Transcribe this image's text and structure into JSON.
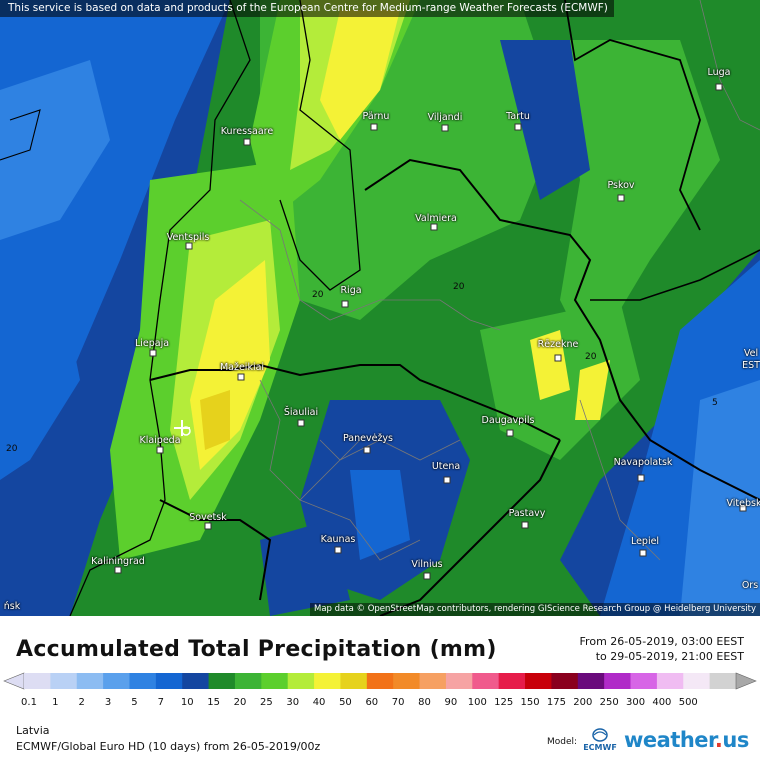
{
  "banner": "This service is based on data and products of the European Centre for Medium-range Weather Forecasts (ECMWF)",
  "map_credit": "Map data © OpenStreetMap contributors, rendering GIScience Research Group @ Heidelberg University",
  "cities": [
    {
      "id": "luga",
      "name": "Luga"
    },
    {
      "id": "kuressaare",
      "name": "Kuressaare"
    },
    {
      "id": "parnu",
      "name": "Pärnu"
    },
    {
      "id": "viljandi",
      "name": "Viljandi"
    },
    {
      "id": "tartu",
      "name": "Tartu"
    },
    {
      "id": "pskov",
      "name": "Pskov"
    },
    {
      "id": "valmiera",
      "name": "Valmiera"
    },
    {
      "id": "ventspils",
      "name": "Ventspils"
    },
    {
      "id": "riga",
      "name": "Riga"
    },
    {
      "id": "liepaja",
      "name": "Liepaja"
    },
    {
      "id": "rezekne",
      "name": "Rēzekne"
    },
    {
      "id": "mazeikiai",
      "name": "Mažeikiai"
    },
    {
      "id": "siauliai",
      "name": "Šiauliai"
    },
    {
      "id": "panevezys",
      "name": "Panevėžys"
    },
    {
      "id": "daugavpils",
      "name": "Daugavpils"
    },
    {
      "id": "klaipeda",
      "name": "Klaipeda"
    },
    {
      "id": "utena",
      "name": "Utena"
    },
    {
      "id": "navapolatsk",
      "name": "Navapolatsk"
    },
    {
      "id": "sovetsk",
      "name": "Sovetsk"
    },
    {
      "id": "vitebsk",
      "name": "Vitebsk"
    },
    {
      "id": "pastavy",
      "name": "Pastavy"
    },
    {
      "id": "kaunas",
      "name": "Kaunas"
    },
    {
      "id": "lepiel",
      "name": "Lepiel"
    },
    {
      "id": "kaliningrad",
      "name": "Kaliningrad"
    },
    {
      "id": "vilnius",
      "name": "Vilnius"
    },
    {
      "id": "velikie_edge",
      "name": "Vel"
    },
    {
      "id": "east_edge",
      "name": "EST"
    },
    {
      "id": "orsha_edge",
      "name": "Ors"
    },
    {
      "id": "minsk_edge",
      "name": "ńsk"
    }
  ],
  "contour_labels": [
    "20",
    "20",
    "20",
    "20",
    "5"
  ],
  "title": "Accumulated Total Precipitation (mm)",
  "date_from": "From 26-05-2019, 03:00 EEST",
  "date_to": "to 29-05-2019, 21:00 EEST",
  "scale": {
    "labels": [
      "0.1",
      "1",
      "2",
      "3",
      "5",
      "7",
      "10",
      "15",
      "20",
      "25",
      "30",
      "40",
      "50",
      "60",
      "70",
      "80",
      "90",
      "100",
      "125",
      "150",
      "175",
      "200",
      "250",
      "300",
      "400",
      "500"
    ],
    "colors": [
      "#ddddf3",
      "#b9d1f5",
      "#8cbcf2",
      "#5aa0ec",
      "#2f82e2",
      "#1466d2",
      "#1446a0",
      "#1f8a2a",
      "#3cb435",
      "#5ccf2d",
      "#b4ec3a",
      "#f4f236",
      "#e6d21c",
      "#f27218",
      "#f28a28",
      "#f6a062",
      "#f6a3a3",
      "#f05a8c",
      "#e61c4a",
      "#c8000a",
      "#8a001e",
      "#6a0a7c",
      "#b02ac8",
      "#d765e6",
      "#f0bcf2",
      "#f4e8f6",
      "#d2d2d2"
    ]
  },
  "region": "Latvia",
  "model": "ECMWF/Global Euro HD (10 days) from 26-05-2019/00z",
  "model_label": "Model:",
  "ecmwf_logo_text": "ECMWF",
  "logo": {
    "part1": "weather",
    "sep": ".",
    "part2": "us"
  }
}
